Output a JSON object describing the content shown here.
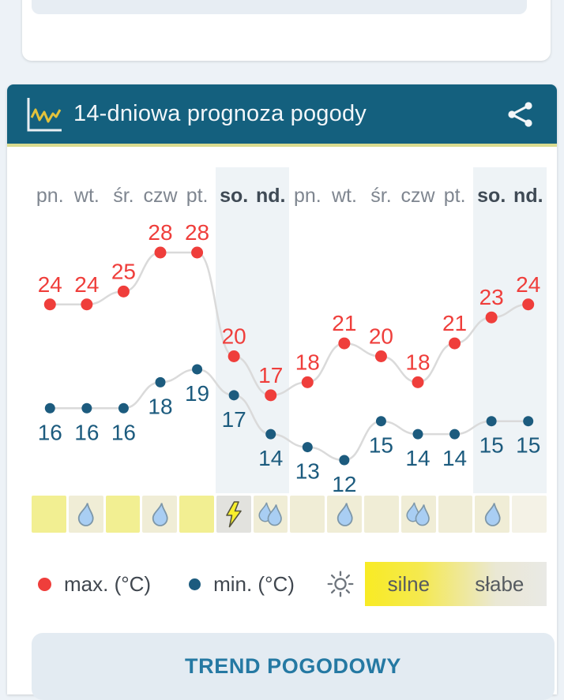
{
  "forecast_card": {
    "title": "14-dniowa prognoza pogody",
    "days": [
      {
        "label": "pn.",
        "weekend": false
      },
      {
        "label": "wt.",
        "weekend": false
      },
      {
        "label": "śr.",
        "weekend": false
      },
      {
        "label": "czw",
        "weekend": false
      },
      {
        "label": "pt.",
        "weekend": false
      },
      {
        "label": "so.",
        "weekend": true
      },
      {
        "label": "nd.",
        "weekend": true
      },
      {
        "label": "pn.",
        "weekend": false
      },
      {
        "label": "wt.",
        "weekend": false
      },
      {
        "label": "śr.",
        "weekend": false
      },
      {
        "label": "czw",
        "weekend": false
      },
      {
        "label": "pt.",
        "weekend": false
      },
      {
        "label": "so.",
        "weekend": true
      },
      {
        "label": "nd.",
        "weekend": true
      }
    ],
    "chart_data": {
      "type": "line",
      "categories": [
        "pn.",
        "wt.",
        "śr.",
        "czw",
        "pt.",
        "so.",
        "nd.",
        "pn.",
        "wt.",
        "śr.",
        "czw",
        "pt.",
        "so.",
        "nd."
      ],
      "series": [
        {
          "name": "max. (°C)",
          "color": "#ef3e3b",
          "values": [
            24,
            24,
            25,
            28,
            28,
            20,
            17,
            18,
            21,
            20,
            18,
            21,
            23,
            24
          ]
        },
        {
          "name": "min. (°C)",
          "color": "#1c5b7e",
          "values": [
            16,
            16,
            16,
            18,
            19,
            17,
            14,
            13,
            12,
            15,
            14,
            14,
            15,
            15
          ]
        }
      ],
      "title": "14-dniowa prognoza pogody",
      "xlabel": "",
      "ylabel": "",
      "ylim": [
        11,
        29
      ],
      "grid": false,
      "legend_position": "bottom",
      "point_labels": true,
      "weekend_highlight": true
    },
    "daily_conditions": [
      {
        "sun": "strong",
        "precip": "none"
      },
      {
        "sun": "medium",
        "precip": "rain"
      },
      {
        "sun": "strong",
        "precip": "none"
      },
      {
        "sun": "medium",
        "precip": "rain"
      },
      {
        "sun": "strong",
        "precip": "none"
      },
      {
        "sun": "weak",
        "precip": "storm"
      },
      {
        "sun": "medium",
        "precip": "heavy-rain"
      },
      {
        "sun": "medium",
        "precip": "none"
      },
      {
        "sun": "medium",
        "precip": "rain"
      },
      {
        "sun": "medium",
        "precip": "none"
      },
      {
        "sun": "medium",
        "precip": "heavy-rain"
      },
      {
        "sun": "medium",
        "precip": "none"
      },
      {
        "sun": "medium",
        "precip": "rain"
      },
      {
        "sun": "faint",
        "precip": "none"
      }
    ],
    "legend": {
      "max_label": "max. (°C)",
      "min_label": "min. (°C)",
      "scale_strong": "silne",
      "scale_weak": "słabe"
    }
  },
  "trend_button": {
    "label": "TREND POGODOWY"
  },
  "icons": {
    "header": "line-chart-icon",
    "share": "share-icon",
    "sun": "sun-icon",
    "rain": "raindrop-icon",
    "heavy_rain": "double-raindrop-icon",
    "storm": "lightning-icon"
  },
  "theme": {
    "page_bg": "#edf2f7",
    "card_bg": "#ffffff",
    "header_bg": "#14607e",
    "header_accent": "#d9db8f",
    "max_color": "#ef3e3b",
    "min_color": "#1c5b7e",
    "line_color": "#dadada",
    "weekend_band": "#eef3f6",
    "day_label": "#7f8690",
    "day_label_weekend": "#3f4a55",
    "sun_strong": "#f2ef92",
    "sun_medium": "#f0edd6",
    "sun_weak": "#e2e2de",
    "sun_faint": "#f4f2e6",
    "drop_fill": "#a9cef3",
    "drop_stroke": "#7d97a9",
    "bolt_fill": "#f8ef2c",
    "scale_from": "#f8eb24",
    "scale_to": "#e9e9e5",
    "trend_bg": "#e3ebf2",
    "trend_text": "#2579a3"
  }
}
